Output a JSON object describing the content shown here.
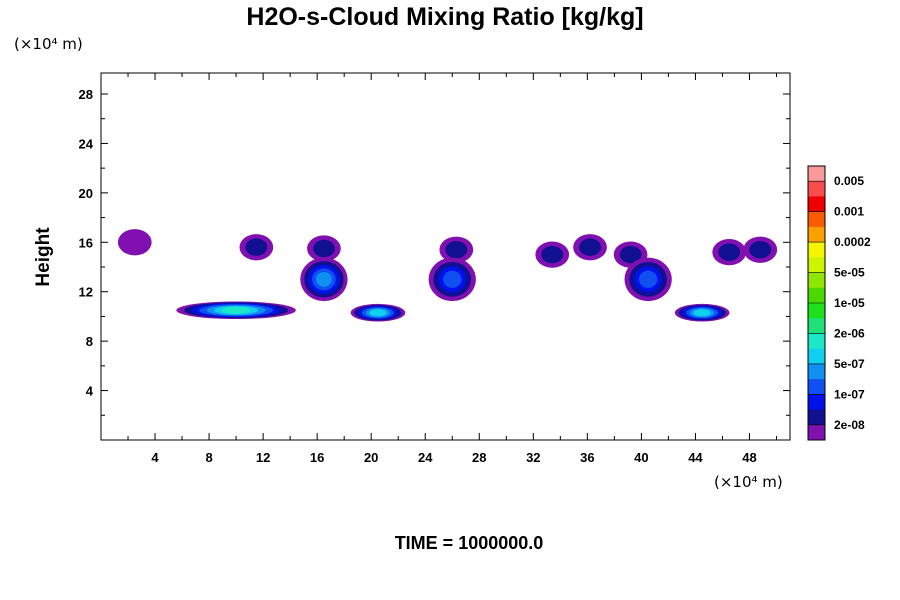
{
  "chart_data": {
    "type": "contour",
    "title": "H2O-s-Cloud Mixing Ratio [kg/kg]",
    "x_unit": "(×10⁴ m)",
    "y_unit": "(×10⁴ m)",
    "ylabel": "Height",
    "xlabel": "",
    "xlim": [
      0,
      51
    ],
    "ylim": [
      0,
      29.7
    ],
    "xticks": [
      "4",
      "8",
      "12",
      "16",
      "20",
      "24",
      "28",
      "32",
      "36",
      "40",
      "44",
      "48"
    ],
    "yticks": [
      "4",
      "8",
      "12",
      "16",
      "20",
      "24",
      "28"
    ],
    "colorbar": {
      "labels": [
        "0.005",
        "0.001",
        "0.0002",
        "5e-05",
        "1e-05",
        "2e-06",
        "5e-07",
        "1e-07",
        "2e-08"
      ],
      "colors": [
        "#f99a9a",
        "#f74d4d",
        "#f00000",
        "#fa5a00",
        "#fba000",
        "#f6f600",
        "#cdf500",
        "#8fe600",
        "#4ada00",
        "#1ee11e",
        "#20e07a",
        "#1ce8c8",
        "#10d0f0",
        "#1090f0",
        "#1050f0",
        "#0010e8",
        "#101090",
        "#8010b0"
      ]
    },
    "cells": [
      {
        "x": 2.5,
        "y": 16,
        "level": 1
      },
      {
        "x": 11.5,
        "y": 15.6,
        "level": 2
      },
      {
        "x": 16.5,
        "y": 15.5,
        "level": 2
      },
      {
        "x": 26.3,
        "y": 15.4,
        "level": 2
      },
      {
        "x": 33.4,
        "y": 15,
        "level": 2
      },
      {
        "x": 36.2,
        "y": 15.6,
        "level": 2
      },
      {
        "x": 39.2,
        "y": 15,
        "level": 2
      },
      {
        "x": 46.5,
        "y": 15.2,
        "level": 2
      },
      {
        "x": 48.8,
        "y": 15.4,
        "level": 2
      },
      {
        "x": 16.5,
        "y": 13,
        "level": 5
      },
      {
        "x": 26,
        "y": 13,
        "level": 4
      },
      {
        "x": 40.5,
        "y": 13,
        "level": 4
      },
      {
        "x": 10,
        "y": 10.5,
        "level": 7
      },
      {
        "x": 20.5,
        "y": 10.3,
        "level": 6
      },
      {
        "x": 44.5,
        "y": 10.3,
        "level": 6
      }
    ]
  },
  "time_label": "TIME = 1000000.0"
}
